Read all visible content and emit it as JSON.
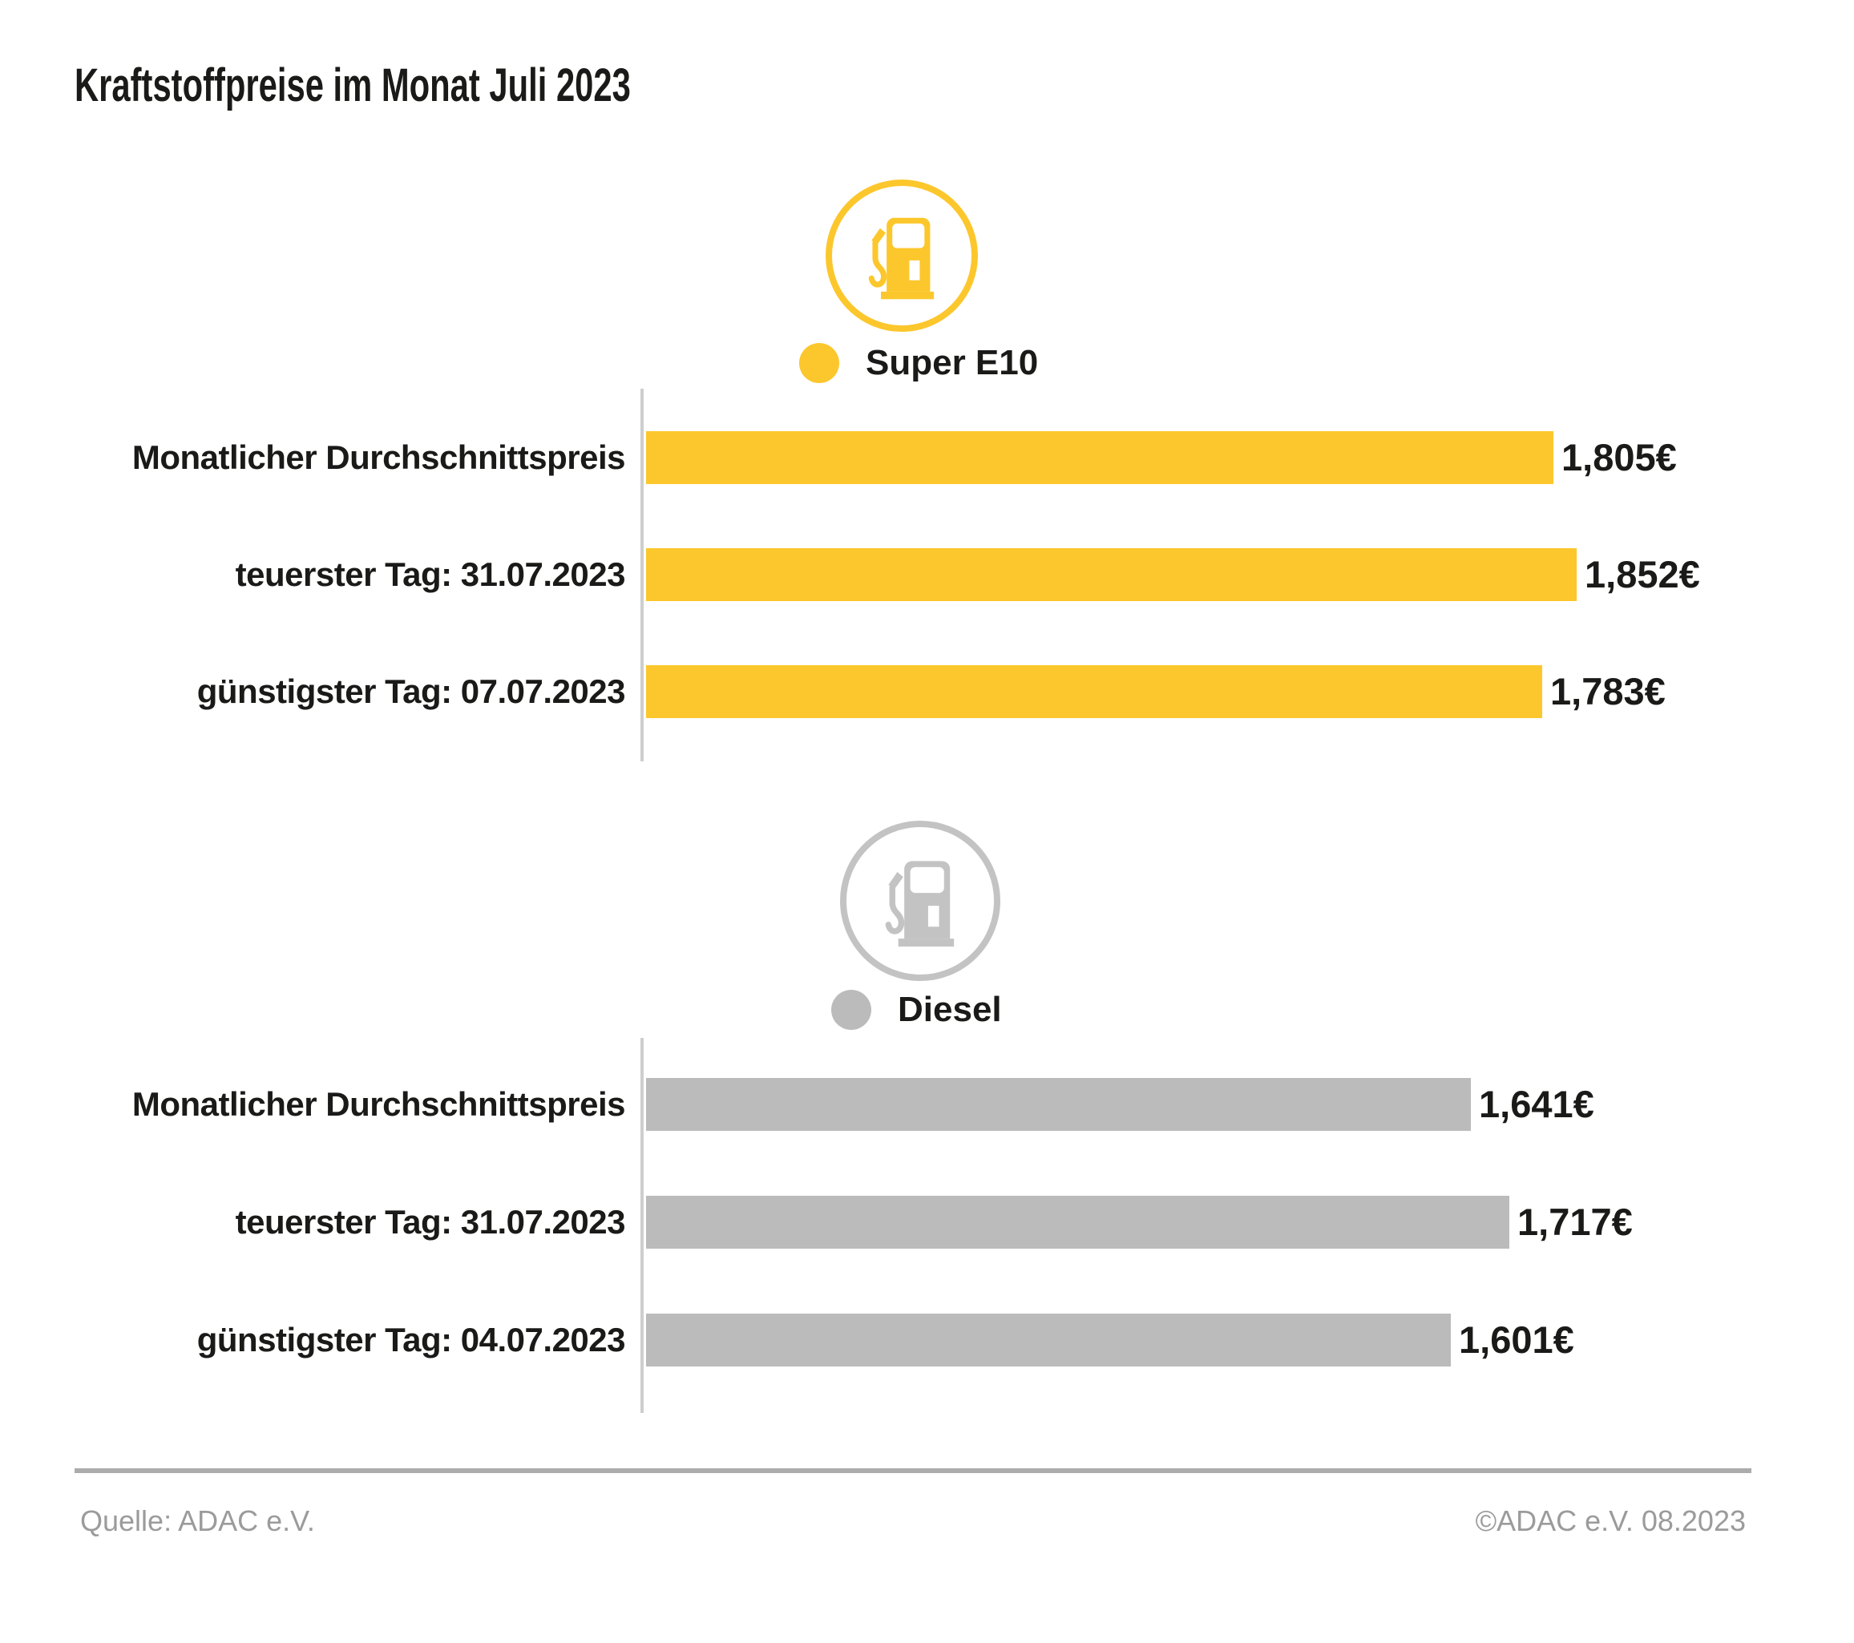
{
  "title": "Kraftstoffpreise im Monat Juli 2023",
  "colors": {
    "super_e10_accent": "#FCC72C",
    "diesel_accent": "#BCBBBB",
    "diesel_icon": "#C4C3C3",
    "axis_line": "#CFCECE",
    "divider": "#ACACAC",
    "footer_text": "#9B9B9B",
    "text": "#1A1A18"
  },
  "chart_data": [
    {
      "type": "bar",
      "orientation": "horizontal",
      "title": "Super E10",
      "legend_label": "Super E10",
      "icon": "fuel-pump-icon",
      "color": "#FCC72C",
      "icon_color": "#FCC72C",
      "categories": [
        "Monatlicher Durchschnittspreis",
        "teuerster Tag: 31.07.2023",
        "günstigster Tag: 07.07.2023"
      ],
      "values": [
        1.805,
        1.852,
        1.783
      ],
      "value_labels": [
        "1,805€",
        "1,852€",
        "1,783€"
      ],
      "xlim": [
        0,
        1.97
      ],
      "grid": false,
      "legend_position": "top-center"
    },
    {
      "type": "bar",
      "orientation": "horizontal",
      "title": "Diesel",
      "legend_label": "Diesel",
      "icon": "fuel-pump-icon",
      "color": "#BCBBBB",
      "icon_color": "#C4C3C3",
      "categories": [
        "Monatlicher Durchschnittspreis",
        "teuerster Tag: 31.07.2023",
        "günstigster Tag: 04.07.2023"
      ],
      "values": [
        1.641,
        1.717,
        1.601
      ],
      "value_labels": [
        "1,641€",
        "1,717€",
        "1,601€"
      ],
      "xlim": [
        0,
        1.97
      ],
      "grid": false,
      "legend_position": "top-center"
    }
  ],
  "footer": {
    "source": "Quelle: ADAC e.V.",
    "copyright": "©ADAC e.V. 08.2023"
  }
}
